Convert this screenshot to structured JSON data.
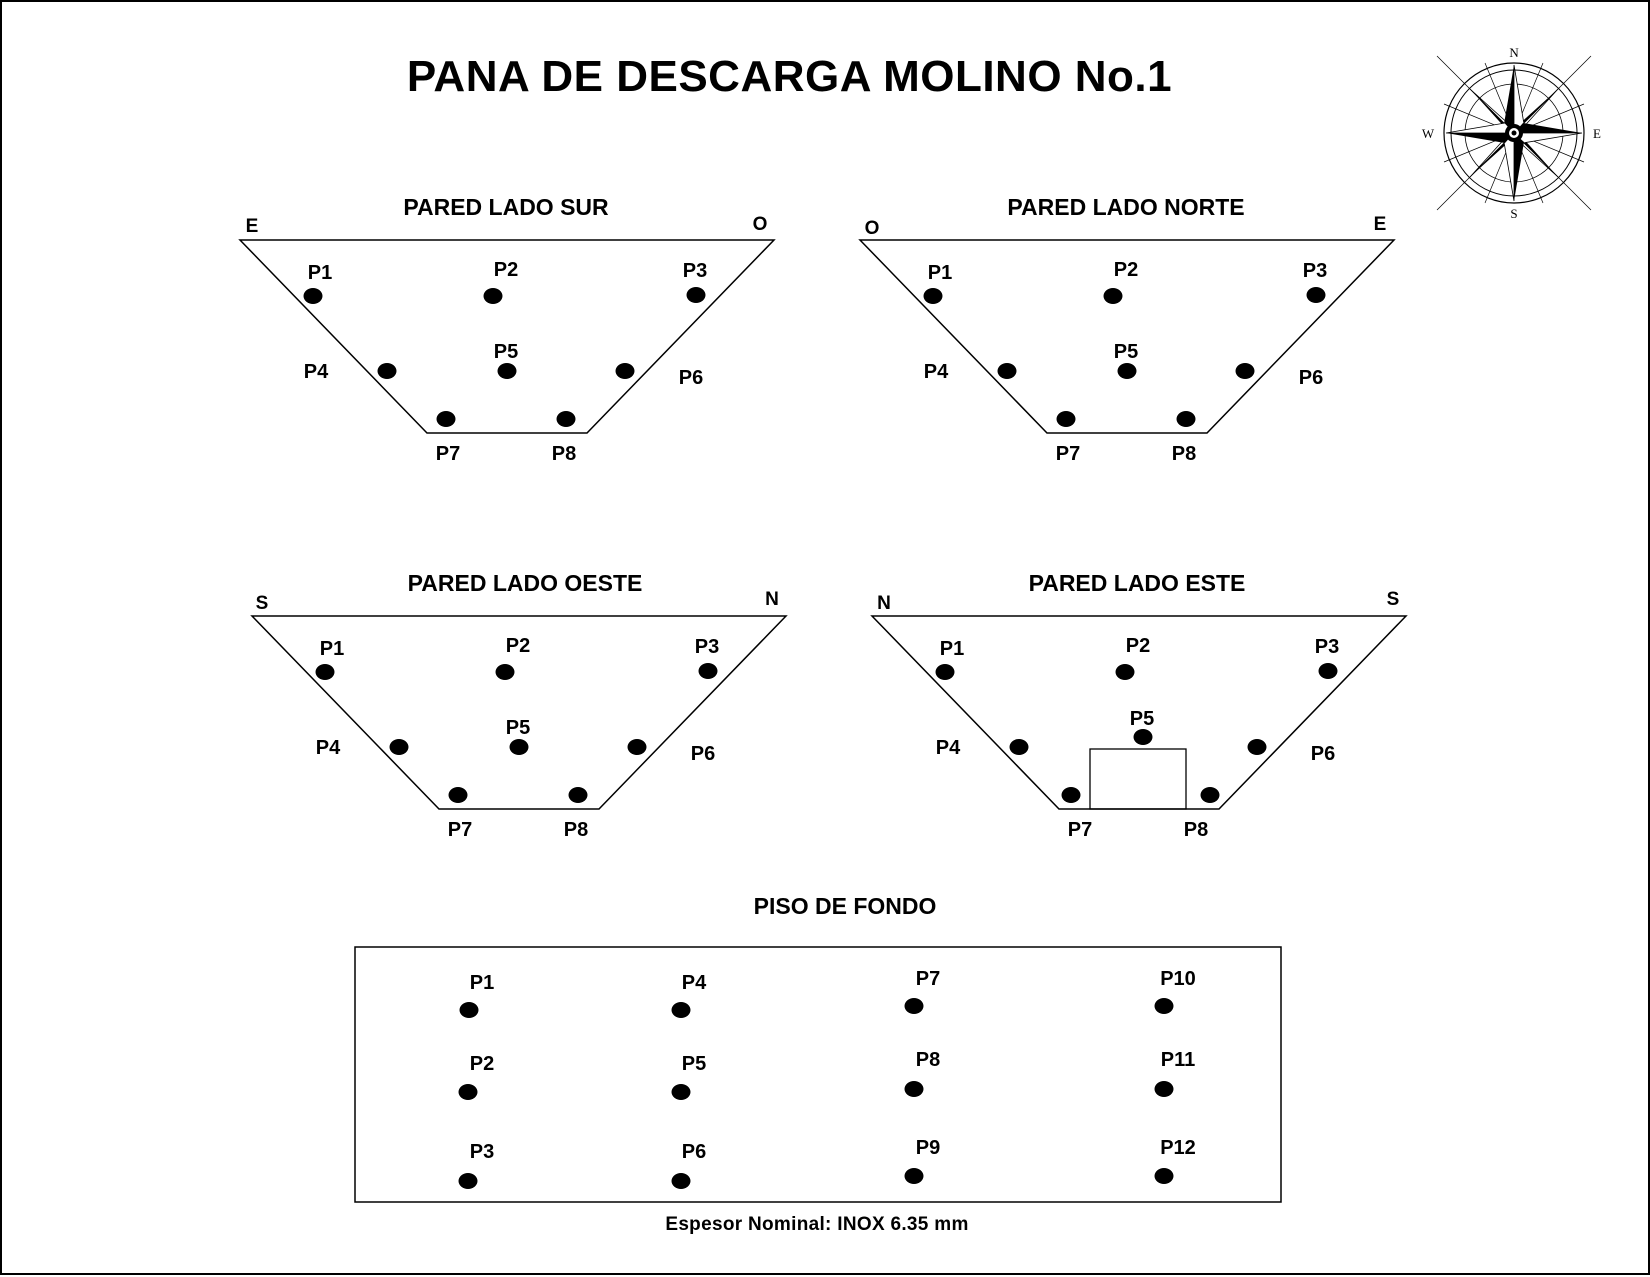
{
  "title": "PANA DE DESCARGA MOLINO No.1",
  "compass": {
    "north": "N",
    "south": "S",
    "east": "E",
    "west": "W",
    "icon": "compass-rose-icon"
  },
  "walls": [
    {
      "id": "sur",
      "title": "PARED LADO SUR",
      "left_dir": "E",
      "right_dir": "O",
      "points": [
        "P1",
        "P2",
        "P3",
        "P4",
        "P5",
        "P6",
        "P7",
        "P8"
      ]
    },
    {
      "id": "norte",
      "title": "PARED LADO NORTE",
      "left_dir": "O",
      "right_dir": "E",
      "points": [
        "P1",
        "P2",
        "P3",
        "P4",
        "P5",
        "P6",
        "P7",
        "P8"
      ]
    },
    {
      "id": "oeste",
      "title": "PARED LADO OESTE",
      "left_dir": "S",
      "right_dir": "N",
      "points": [
        "P1",
        "P2",
        "P3",
        "P4",
        "P5",
        "P6",
        "P7",
        "P8"
      ]
    },
    {
      "id": "este",
      "title": "PARED LADO ESTE",
      "left_dir": "N",
      "right_dir": "S",
      "points": [
        "P1",
        "P2",
        "P3",
        "P4",
        "P5",
        "P6",
        "P7",
        "P8"
      ]
    }
  ],
  "floor": {
    "title": "PISO DE FONDO",
    "points": [
      "P1",
      "P2",
      "P3",
      "P4",
      "P5",
      "P6",
      "P7",
      "P8",
      "P9",
      "P10",
      "P11",
      "P12"
    ]
  },
  "footer": "Espesor Nominal: INOX 6.35 mm",
  "colors": {
    "ink": "#000000",
    "paper": "#ffffff"
  }
}
